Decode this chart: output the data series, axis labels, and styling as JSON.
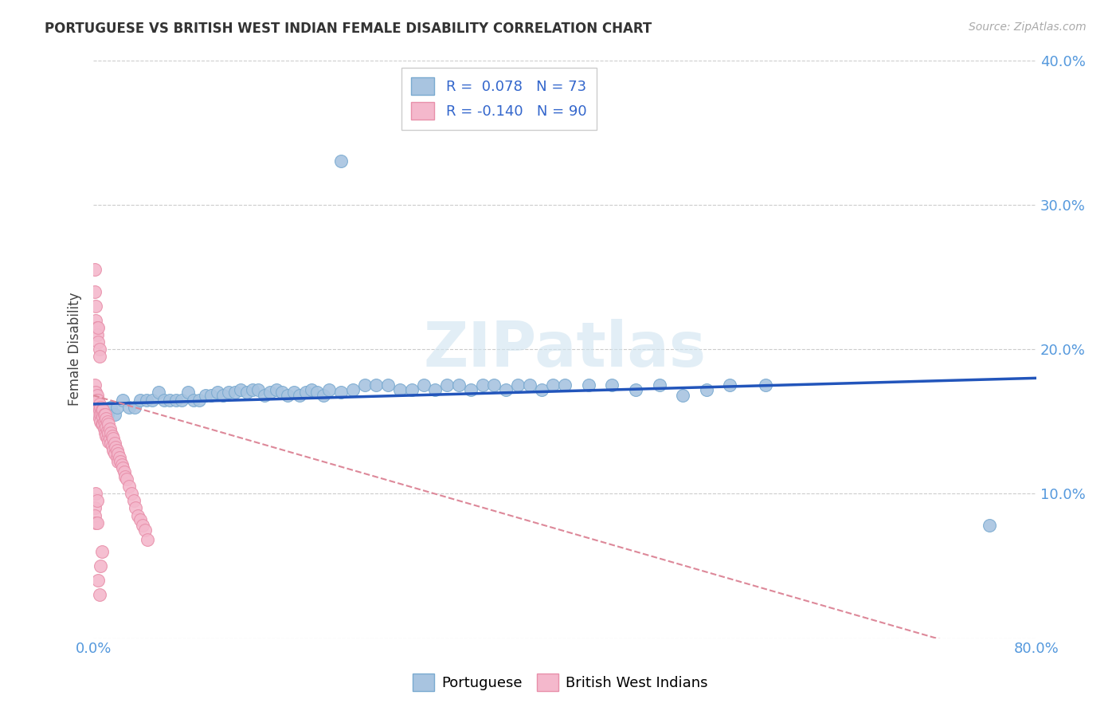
{
  "title": "PORTUGUESE VS BRITISH WEST INDIAN FEMALE DISABILITY CORRELATION CHART",
  "source": "Source: ZipAtlas.com",
  "ylabel": "Female Disability",
  "xlim": [
    0,
    0.8
  ],
  "ylim": [
    0,
    0.4
  ],
  "portuguese_color": "#a8c4e0",
  "portuguese_edge": "#7aaad0",
  "bwi_color": "#f4b8cc",
  "bwi_edge": "#e890aa",
  "trend_blue": "#2255bb",
  "trend_pink": "#dd8899",
  "R_portuguese": 0.078,
  "N_portuguese": 73,
  "R_bwi": -0.14,
  "N_bwi": 90,
  "watermark": "ZIPatlas",
  "legend_label_portuguese": "Portuguese",
  "legend_label_bwi": "British West Indians",
  "portuguese_x": [
    0.005,
    0.008,
    0.01,
    0.012,
    0.015,
    0.018,
    0.02,
    0.025,
    0.03,
    0.035,
    0.04,
    0.045,
    0.05,
    0.055,
    0.06,
    0.065,
    0.07,
    0.075,
    0.08,
    0.085,
    0.09,
    0.095,
    0.1,
    0.105,
    0.11,
    0.115,
    0.12,
    0.125,
    0.13,
    0.135,
    0.14,
    0.145,
    0.15,
    0.155,
    0.16,
    0.165,
    0.17,
    0.175,
    0.18,
    0.185,
    0.19,
    0.195,
    0.2,
    0.21,
    0.22,
    0.23,
    0.24,
    0.25,
    0.26,
    0.27,
    0.28,
    0.29,
    0.3,
    0.31,
    0.32,
    0.33,
    0.34,
    0.35,
    0.36,
    0.37,
    0.38,
    0.39,
    0.4,
    0.42,
    0.44,
    0.46,
    0.48,
    0.5,
    0.52,
    0.54,
    0.57,
    0.76,
    0.21
  ],
  "portuguese_y": [
    0.155,
    0.155,
    0.15,
    0.155,
    0.16,
    0.155,
    0.16,
    0.165,
    0.16,
    0.16,
    0.165,
    0.165,
    0.165,
    0.17,
    0.165,
    0.165,
    0.165,
    0.165,
    0.17,
    0.165,
    0.165,
    0.168,
    0.168,
    0.17,
    0.168,
    0.17,
    0.17,
    0.172,
    0.17,
    0.172,
    0.172,
    0.168,
    0.17,
    0.172,
    0.17,
    0.168,
    0.17,
    0.168,
    0.17,
    0.172,
    0.17,
    0.168,
    0.172,
    0.17,
    0.172,
    0.175,
    0.175,
    0.175,
    0.172,
    0.172,
    0.175,
    0.172,
    0.175,
    0.175,
    0.172,
    0.175,
    0.175,
    0.172,
    0.175,
    0.175,
    0.172,
    0.175,
    0.175,
    0.175,
    0.175,
    0.172,
    0.175,
    0.168,
    0.172,
    0.175,
    0.175,
    0.078,
    0.33
  ],
  "bwi_x": [
    0.001,
    0.001,
    0.001,
    0.002,
    0.002,
    0.002,
    0.003,
    0.003,
    0.003,
    0.004,
    0.004,
    0.004,
    0.005,
    0.005,
    0.005,
    0.006,
    0.006,
    0.006,
    0.007,
    0.007,
    0.007,
    0.008,
    0.008,
    0.008,
    0.009,
    0.009,
    0.009,
    0.01,
    0.01,
    0.01,
    0.011,
    0.011,
    0.011,
    0.012,
    0.012,
    0.012,
    0.013,
    0.013,
    0.013,
    0.014,
    0.014,
    0.015,
    0.015,
    0.016,
    0.016,
    0.017,
    0.017,
    0.018,
    0.018,
    0.019,
    0.02,
    0.02,
    0.021,
    0.021,
    0.022,
    0.023,
    0.024,
    0.025,
    0.026,
    0.027,
    0.028,
    0.03,
    0.032,
    0.034,
    0.036,
    0.038,
    0.04,
    0.042,
    0.044,
    0.046,
    0.001,
    0.001,
    0.002,
    0.002,
    0.003,
    0.003,
    0.004,
    0.004,
    0.005,
    0.005,
    0.001,
    0.002,
    0.003,
    0.001,
    0.002,
    0.003,
    0.004,
    0.005,
    0.006,
    0.007
  ],
  "bwi_y": [
    0.17,
    0.165,
    0.175,
    0.17,
    0.165,
    0.16,
    0.168,
    0.165,
    0.158,
    0.165,
    0.16,
    0.155,
    0.162,
    0.158,
    0.152,
    0.16,
    0.155,
    0.15,
    0.158,
    0.155,
    0.148,
    0.158,
    0.153,
    0.148,
    0.155,
    0.15,
    0.145,
    0.155,
    0.148,
    0.142,
    0.152,
    0.146,
    0.14,
    0.15,
    0.144,
    0.138,
    0.148,
    0.142,
    0.136,
    0.145,
    0.138,
    0.142,
    0.135,
    0.14,
    0.133,
    0.138,
    0.13,
    0.135,
    0.128,
    0.132,
    0.13,
    0.125,
    0.128,
    0.122,
    0.125,
    0.122,
    0.12,
    0.118,
    0.115,
    0.112,
    0.11,
    0.105,
    0.1,
    0.095,
    0.09,
    0.085,
    0.082,
    0.078,
    0.075,
    0.068,
    0.24,
    0.255,
    0.23,
    0.22,
    0.215,
    0.21,
    0.215,
    0.205,
    0.2,
    0.195,
    0.09,
    0.1,
    0.095,
    0.085,
    0.08,
    0.08,
    0.04,
    0.03,
    0.05,
    0.06
  ]
}
